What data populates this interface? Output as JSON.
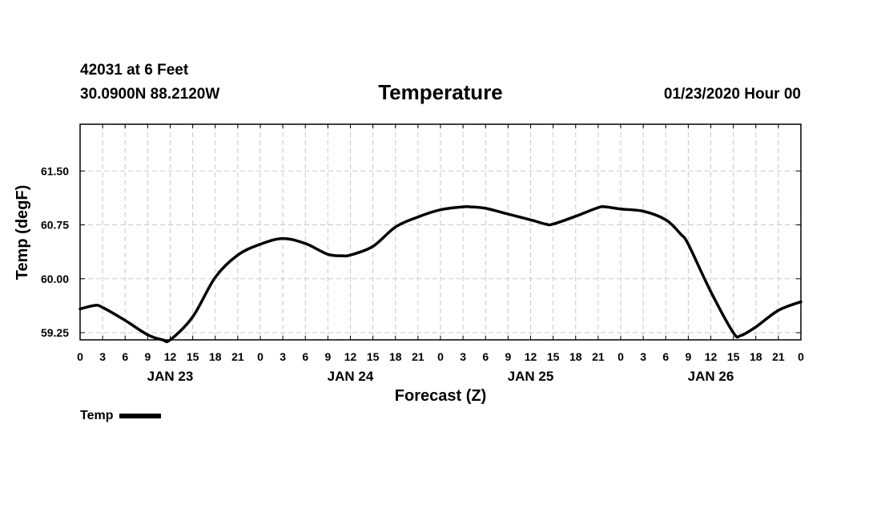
{
  "header": {
    "station": "42031 at 6 Feet",
    "coords": "30.0900N 88.2120W",
    "issued": "01/23/2020 Hour 00"
  },
  "chart_data": {
    "type": "line",
    "title": "Temperature",
    "xlabel": "Forecast (Z)",
    "ylabel": "Temp (degF)",
    "x_range_hours": [
      0,
      96
    ],
    "xlim": [
      "2020-01-23 00Z",
      "2020-01-27 00Z"
    ],
    "ylim": [
      59.15,
      62.15
    ],
    "y_ticks": [
      "59.25",
      "60.00",
      "60.75",
      "61.50"
    ],
    "y_tick_values": [
      59.25,
      60.0,
      60.75,
      61.5
    ],
    "x_tick_labels": [
      "0",
      "3",
      "6",
      "9",
      "12",
      "15",
      "18",
      "21",
      "0",
      "3",
      "6",
      "9",
      "12",
      "15",
      "18",
      "21",
      "0",
      "3",
      "6",
      "9",
      "12",
      "15",
      "18",
      "21",
      "0",
      "3",
      "6",
      "9",
      "12",
      "15",
      "18",
      "21",
      "0"
    ],
    "day_labels": [
      "JAN 23",
      "JAN 24",
      "JAN 25",
      "JAN 26"
    ],
    "grid": true,
    "legend_position": "bottom-left",
    "color": "#000000",
    "series": [
      {
        "name": "Temp",
        "x": [
          "2020-01-23 00Z",
          "2020-01-23 02Z",
          "2020-01-23 03Z",
          "2020-01-23 06Z",
          "2020-01-23 09Z",
          "2020-01-23 11Z",
          "2020-01-23 12Z",
          "2020-01-23 15Z",
          "2020-01-23 18Z",
          "2020-01-23 21Z",
          "2020-01-24 00Z",
          "2020-01-24 03Z",
          "2020-01-24 06Z",
          "2020-01-24 09Z",
          "2020-01-24 11Z",
          "2020-01-24 12Z",
          "2020-01-24 15Z",
          "2020-01-24 18Z",
          "2020-01-24 21Z",
          "2020-01-25 00Z",
          "2020-01-25 03Z",
          "2020-01-25 04Z",
          "2020-01-25 06Z",
          "2020-01-25 09Z",
          "2020-01-25 12Z",
          "2020-01-25 14Z",
          "2020-01-25 15Z",
          "2020-01-25 18Z",
          "2020-01-25 21Z",
          "2020-01-25 22Z",
          "2020-01-26 00Z",
          "2020-01-26 03Z",
          "2020-01-26 06Z",
          "2020-01-26 08Z",
          "2020-01-26 09Z",
          "2020-01-26 12Z",
          "2020-01-26 15Z",
          "2020-01-26 16Z",
          "2020-01-26 18Z",
          "2020-01-26 21Z",
          "2020-01-27 00Z"
        ],
        "values": [
          59.58,
          59.63,
          59.6,
          59.42,
          59.22,
          59.15,
          59.15,
          59.47,
          60.02,
          60.33,
          60.48,
          60.56,
          60.49,
          60.34,
          60.32,
          60.33,
          60.45,
          60.72,
          60.86,
          60.96,
          61.0,
          61.0,
          60.98,
          60.9,
          60.82,
          60.76,
          60.76,
          60.87,
          60.99,
          61.0,
          60.97,
          60.94,
          60.82,
          60.62,
          60.48,
          59.82,
          59.25,
          59.21,
          59.33,
          59.56,
          59.68
        ]
      }
    ]
  },
  "legend": {
    "label": "Temp"
  }
}
